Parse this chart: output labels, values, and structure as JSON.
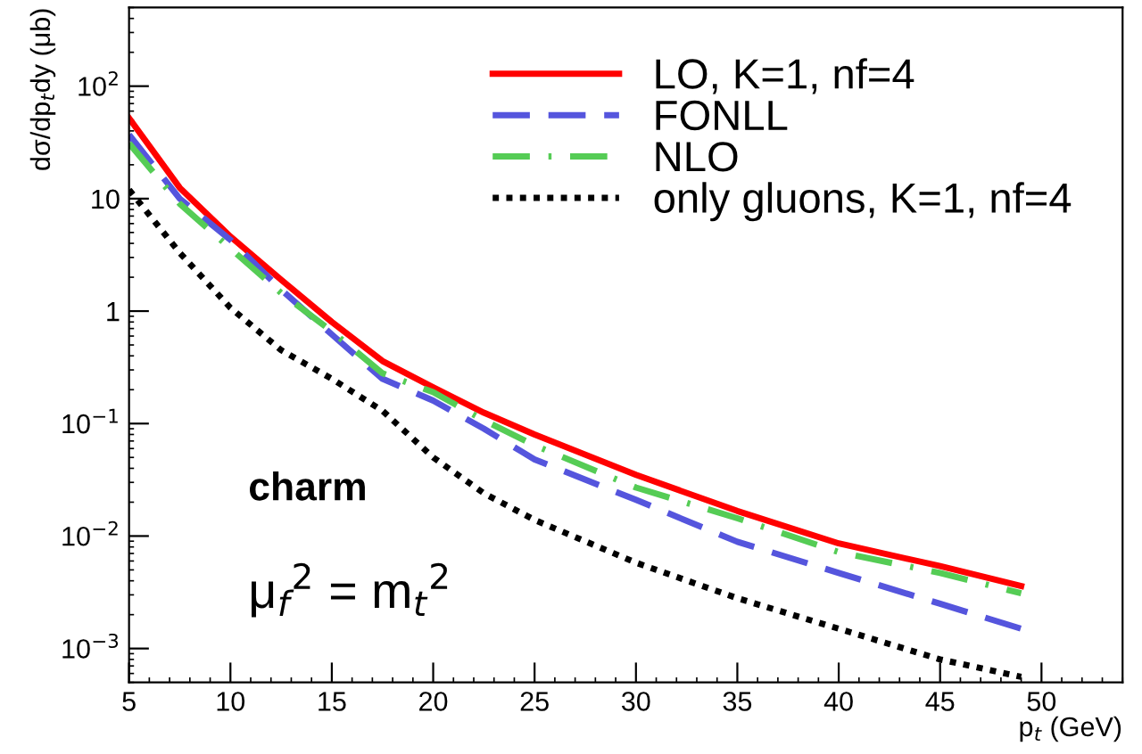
{
  "chart_data": {
    "type": "line",
    "xlabel": "p$_{t}$ (GeV)",
    "ylabel": "dσ/dp$_{t}$dy (μb)",
    "x": [
      5,
      7.5,
      10,
      12.5,
      15,
      17.5,
      20,
      22.5,
      25,
      30,
      35,
      40,
      45,
      49
    ],
    "series": [
      {
        "name": "LO, K=1, nf=4",
        "color": "#ff0000",
        "line_style": "solid",
        "values": [
          52,
          12.5,
          4.6,
          1.9,
          0.8,
          0.36,
          0.21,
          0.125,
          0.08,
          0.035,
          0.0167,
          0.0086,
          0.0054,
          0.0036
        ]
      },
      {
        "name": "FONLL",
        "color": "#5555dd",
        "line_style": "dashed",
        "values": [
          37,
          10,
          4.3,
          1.55,
          0.62,
          0.25,
          0.16,
          0.09,
          0.048,
          0.021,
          0.0089,
          0.0047,
          0.0025,
          0.0015
        ]
      },
      {
        "name": "NLO",
        "color": "#55cc55",
        "line_style": "dashdot",
        "values": [
          31,
          9,
          3.6,
          1.45,
          0.66,
          0.28,
          0.19,
          0.107,
          0.064,
          0.027,
          0.0144,
          0.0072,
          0.0047,
          0.0031
        ]
      },
      {
        "name": "only gluons, K=1, nf=4",
        "color": "#000000",
        "line_style": "dotted",
        "values": [
          12,
          3.3,
          1.07,
          0.45,
          0.25,
          0.13,
          0.05,
          0.024,
          0.0139,
          0.0058,
          0.0028,
          0.0015,
          0.0008,
          0.00056
        ]
      }
    ],
    "log": "y",
    "xlim": [
      5,
      54
    ],
    "ylim": [
      0.0005,
      500
    ],
    "xticks": [
      5,
      10,
      15,
      20,
      25,
      30,
      35,
      40,
      45,
      50
    ],
    "yticks": [
      {
        "value": 0.001,
        "label": "10$^{−3}$"
      },
      {
        "value": 0.01,
        "label": "10$^{−2}$"
      },
      {
        "value": 0.1,
        "label": "10$^{−1}$"
      },
      1,
      10,
      {
        "value": 100,
        "label": "10$^{2}$"
      }
    ],
    "annotations": [
      "charm",
      "μ$_{f}$$^{2}$ = m$_{t}$$^{2}$"
    ],
    "legend": "top right",
    "grid": false
  }
}
